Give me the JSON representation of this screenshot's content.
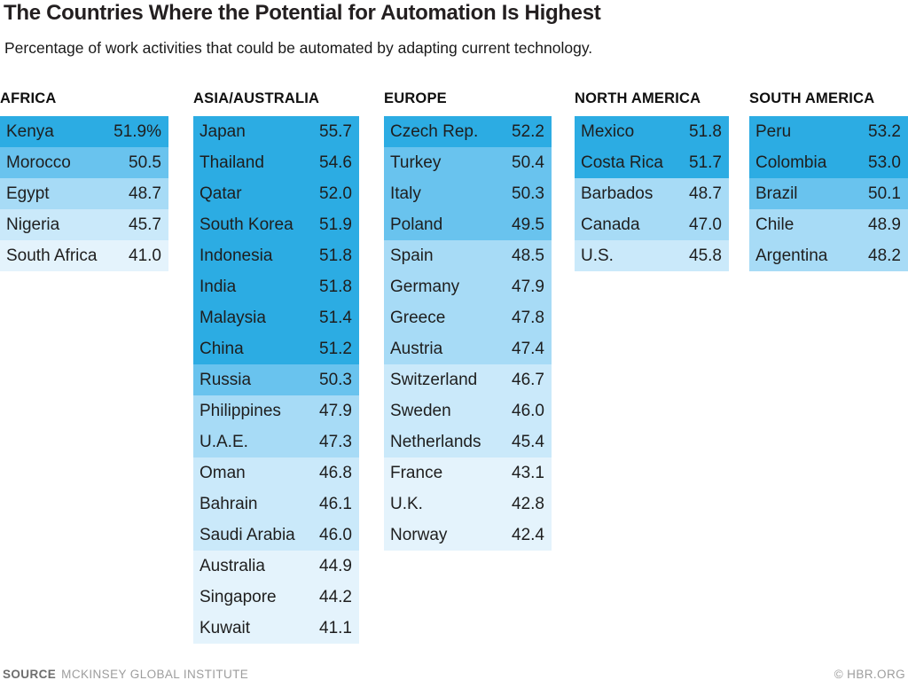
{
  "title": "The Countries Where the Potential for Automation Is Highest",
  "subtitle": "Percentage of work activities that could be automated by adapting current technology.",
  "footer": {
    "source_label": "SOURCE",
    "source_value": "MCKINSEY GLOBAL INSTITUTE",
    "credit": "© HBR.ORG"
  },
  "palette": {
    "b5": "#2CACE3",
    "b4": "#69C3EE",
    "b3": "#A7DBF6",
    "b2": "#CAE9FA",
    "b1": "#E4F3FC"
  },
  "chart_data": {
    "type": "table",
    "title": "The Countries Where the Potential for Automation Is Highest",
    "subtitle": "Percentage of work activities that could be automated by adapting current technology.",
    "unit": "%",
    "color_scale_note": "darker blue = higher automation potential; bands approx >=51, 49-51, 47-49, 45-47, <45",
    "regions": [
      {
        "name": "AFRICA",
        "rows": [
          {
            "country": "Kenya",
            "value": "51.9%",
            "band": "b5"
          },
          {
            "country": "Morocco",
            "value": "50.5",
            "band": "b4"
          },
          {
            "country": "Egypt",
            "value": "48.7",
            "band": "b3"
          },
          {
            "country": "Nigeria",
            "value": "45.7",
            "band": "b2"
          },
          {
            "country": "South Africa",
            "value": "41.0",
            "band": "b1"
          }
        ]
      },
      {
        "name": "ASIA/AUSTRALIA",
        "rows": [
          {
            "country": "Japan",
            "value": "55.7",
            "band": "b5"
          },
          {
            "country": "Thailand",
            "value": "54.6",
            "band": "b5"
          },
          {
            "country": "Qatar",
            "value": "52.0",
            "band": "b5"
          },
          {
            "country": "South Korea",
            "value": "51.9",
            "band": "b5"
          },
          {
            "country": "Indonesia",
            "value": "51.8",
            "band": "b5"
          },
          {
            "country": "India",
            "value": "51.8",
            "band": "b5"
          },
          {
            "country": "Malaysia",
            "value": "51.4",
            "band": "b5"
          },
          {
            "country": "China",
            "value": "51.2",
            "band": "b5"
          },
          {
            "country": "Russia",
            "value": "50.3",
            "band": "b4"
          },
          {
            "country": "Philippines",
            "value": "47.9",
            "band": "b3"
          },
          {
            "country": "U.A.E.",
            "value": "47.3",
            "band": "b3"
          },
          {
            "country": "Oman",
            "value": "46.8",
            "band": "b2"
          },
          {
            "country": "Bahrain",
            "value": "46.1",
            "band": "b2"
          },
          {
            "country": "Saudi Arabia",
            "value": "46.0",
            "band": "b2"
          },
          {
            "country": "Australia",
            "value": "44.9",
            "band": "b1"
          },
          {
            "country": "Singapore",
            "value": "44.2",
            "band": "b1"
          },
          {
            "country": "Kuwait",
            "value": "41.1",
            "band": "b1"
          }
        ]
      },
      {
        "name": "EUROPE",
        "rows": [
          {
            "country": "Czech Rep.",
            "value": "52.2",
            "band": "b5"
          },
          {
            "country": "Turkey",
            "value": "50.4",
            "band": "b4"
          },
          {
            "country": "Italy",
            "value": "50.3",
            "band": "b4"
          },
          {
            "country": "Poland",
            "value": "49.5",
            "band": "b4"
          },
          {
            "country": "Spain",
            "value": "48.5",
            "band": "b3"
          },
          {
            "country": "Germany",
            "value": "47.9",
            "band": "b3"
          },
          {
            "country": "Greece",
            "value": "47.8",
            "band": "b3"
          },
          {
            "country": "Austria",
            "value": "47.4",
            "band": "b3"
          },
          {
            "country": "Switzerland",
            "value": "46.7",
            "band": "b2"
          },
          {
            "country": "Sweden",
            "value": "46.0",
            "band": "b2"
          },
          {
            "country": "Netherlands",
            "value": "45.4",
            "band": "b2"
          },
          {
            "country": "France",
            "value": "43.1",
            "band": "b1"
          },
          {
            "country": "U.K.",
            "value": "42.8",
            "band": "b1"
          },
          {
            "country": "Norway",
            "value": "42.4",
            "band": "b1"
          }
        ]
      },
      {
        "name": "NORTH AMERICA",
        "rows": [
          {
            "country": "Mexico",
            "value": "51.8",
            "band": "b5"
          },
          {
            "country": "Costa Rica",
            "value": "51.7",
            "band": "b5"
          },
          {
            "country": "Barbados",
            "value": "48.7",
            "band": "b3"
          },
          {
            "country": "Canada",
            "value": "47.0",
            "band": "b3"
          },
          {
            "country": "U.S.",
            "value": "45.8",
            "band": "b2"
          }
        ]
      },
      {
        "name": "SOUTH AMERICA",
        "rows": [
          {
            "country": "Peru",
            "value": "53.2",
            "band": "b5"
          },
          {
            "country": "Colombia",
            "value": "53.0",
            "band": "b5"
          },
          {
            "country": "Brazil",
            "value": "50.1",
            "band": "b4"
          },
          {
            "country": "Chile",
            "value": "48.9",
            "band": "b3"
          },
          {
            "country": "Argentina",
            "value": "48.2",
            "band": "b3"
          }
        ]
      }
    ]
  }
}
